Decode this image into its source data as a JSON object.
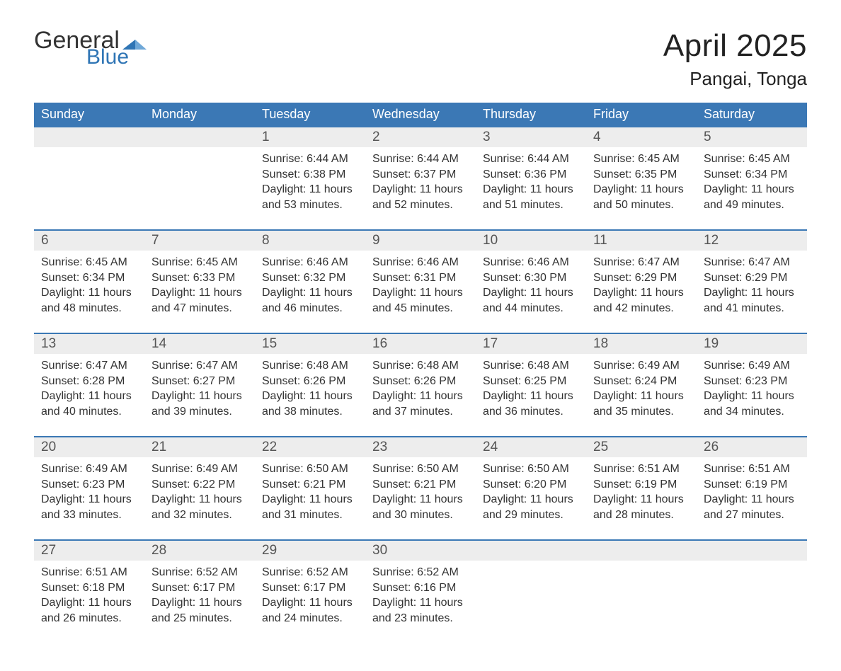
{
  "logo": {
    "text1": "General",
    "text2": "Blue",
    "color1": "#333333",
    "color2": "#2f75b5"
  },
  "title": "April 2025",
  "location": "Pangai, Tonga",
  "colors": {
    "header_bg": "#3b78b5",
    "header_text": "#ffffff",
    "daynum_bg": "#ededed",
    "daynum_text": "#555555",
    "body_text": "#333333",
    "rule": "#3b78b5",
    "page_bg": "#ffffff"
  },
  "typography": {
    "title_fontsize": 44,
    "location_fontsize": 26,
    "dayhead_fontsize": 18,
    "daynum_fontsize": 19,
    "body_fontsize": 16
  },
  "weekdays": [
    "Sunday",
    "Monday",
    "Tuesday",
    "Wednesday",
    "Thursday",
    "Friday",
    "Saturday"
  ],
  "leading_blanks": 2,
  "trailing_blanks": 3,
  "days": [
    {
      "n": 1,
      "sunrise": "6:44 AM",
      "sunset": "6:38 PM",
      "daylight": "11 hours and 53 minutes."
    },
    {
      "n": 2,
      "sunrise": "6:44 AM",
      "sunset": "6:37 PM",
      "daylight": "11 hours and 52 minutes."
    },
    {
      "n": 3,
      "sunrise": "6:44 AM",
      "sunset": "6:36 PM",
      "daylight": "11 hours and 51 minutes."
    },
    {
      "n": 4,
      "sunrise": "6:45 AM",
      "sunset": "6:35 PM",
      "daylight": "11 hours and 50 minutes."
    },
    {
      "n": 5,
      "sunrise": "6:45 AM",
      "sunset": "6:34 PM",
      "daylight": "11 hours and 49 minutes."
    },
    {
      "n": 6,
      "sunrise": "6:45 AM",
      "sunset": "6:34 PM",
      "daylight": "11 hours and 48 minutes."
    },
    {
      "n": 7,
      "sunrise": "6:45 AM",
      "sunset": "6:33 PM",
      "daylight": "11 hours and 47 minutes."
    },
    {
      "n": 8,
      "sunrise": "6:46 AM",
      "sunset": "6:32 PM",
      "daylight": "11 hours and 46 minutes."
    },
    {
      "n": 9,
      "sunrise": "6:46 AM",
      "sunset": "6:31 PM",
      "daylight": "11 hours and 45 minutes."
    },
    {
      "n": 10,
      "sunrise": "6:46 AM",
      "sunset": "6:30 PM",
      "daylight": "11 hours and 44 minutes."
    },
    {
      "n": 11,
      "sunrise": "6:47 AM",
      "sunset": "6:29 PM",
      "daylight": "11 hours and 42 minutes."
    },
    {
      "n": 12,
      "sunrise": "6:47 AM",
      "sunset": "6:29 PM",
      "daylight": "11 hours and 41 minutes."
    },
    {
      "n": 13,
      "sunrise": "6:47 AM",
      "sunset": "6:28 PM",
      "daylight": "11 hours and 40 minutes."
    },
    {
      "n": 14,
      "sunrise": "6:47 AM",
      "sunset": "6:27 PM",
      "daylight": "11 hours and 39 minutes."
    },
    {
      "n": 15,
      "sunrise": "6:48 AM",
      "sunset": "6:26 PM",
      "daylight": "11 hours and 38 minutes."
    },
    {
      "n": 16,
      "sunrise": "6:48 AM",
      "sunset": "6:26 PM",
      "daylight": "11 hours and 37 minutes."
    },
    {
      "n": 17,
      "sunrise": "6:48 AM",
      "sunset": "6:25 PM",
      "daylight": "11 hours and 36 minutes."
    },
    {
      "n": 18,
      "sunrise": "6:49 AM",
      "sunset": "6:24 PM",
      "daylight": "11 hours and 35 minutes."
    },
    {
      "n": 19,
      "sunrise": "6:49 AM",
      "sunset": "6:23 PM",
      "daylight": "11 hours and 34 minutes."
    },
    {
      "n": 20,
      "sunrise": "6:49 AM",
      "sunset": "6:23 PM",
      "daylight": "11 hours and 33 minutes."
    },
    {
      "n": 21,
      "sunrise": "6:49 AM",
      "sunset": "6:22 PM",
      "daylight": "11 hours and 32 minutes."
    },
    {
      "n": 22,
      "sunrise": "6:50 AM",
      "sunset": "6:21 PM",
      "daylight": "11 hours and 31 minutes."
    },
    {
      "n": 23,
      "sunrise": "6:50 AM",
      "sunset": "6:21 PM",
      "daylight": "11 hours and 30 minutes."
    },
    {
      "n": 24,
      "sunrise": "6:50 AM",
      "sunset": "6:20 PM",
      "daylight": "11 hours and 29 minutes."
    },
    {
      "n": 25,
      "sunrise": "6:51 AM",
      "sunset": "6:19 PM",
      "daylight": "11 hours and 28 minutes."
    },
    {
      "n": 26,
      "sunrise": "6:51 AM",
      "sunset": "6:19 PM",
      "daylight": "11 hours and 27 minutes."
    },
    {
      "n": 27,
      "sunrise": "6:51 AM",
      "sunset": "6:18 PM",
      "daylight": "11 hours and 26 minutes."
    },
    {
      "n": 28,
      "sunrise": "6:52 AM",
      "sunset": "6:17 PM",
      "daylight": "11 hours and 25 minutes."
    },
    {
      "n": 29,
      "sunrise": "6:52 AM",
      "sunset": "6:17 PM",
      "daylight": "11 hours and 24 minutes."
    },
    {
      "n": 30,
      "sunrise": "6:52 AM",
      "sunset": "6:16 PM",
      "daylight": "11 hours and 23 minutes."
    }
  ],
  "labels": {
    "sunrise": "Sunrise: ",
    "sunset": "Sunset: ",
    "daylight": "Daylight: "
  }
}
